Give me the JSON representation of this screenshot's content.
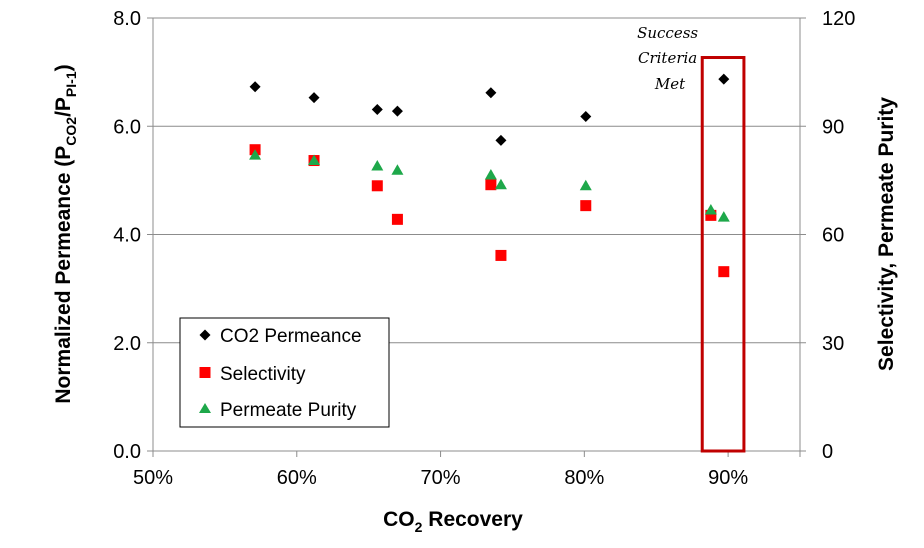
{
  "chart_data": {
    "type": "scatter",
    "title": "",
    "xlabel": {
      "main": "CO",
      "sub": "2",
      "rest": " Recovery"
    },
    "ylabel_left": {
      "p1": "Normalized Permeance (P",
      "s1": "CO2",
      "p2": "/P",
      "s2": "PI-1",
      "p3": ")"
    },
    "ylabel_right": "Selectivity, Permeate Purity",
    "xlim": [
      0.5,
      0.95
    ],
    "ylim_left": [
      0,
      8
    ],
    "ylim_right": [
      0,
      120
    ],
    "x_ticks": [
      {
        "value": 0.5,
        "label": "50%"
      },
      {
        "value": 0.6,
        "label": "60%"
      },
      {
        "value": 0.7,
        "label": "70%"
      },
      {
        "value": 0.8,
        "label": "80%"
      },
      {
        "value": 0.9,
        "label": "90%"
      }
    ],
    "y_left_ticks": [
      {
        "value": 0,
        "label": "0.0"
      },
      {
        "value": 2,
        "label": "2.0"
      },
      {
        "value": 4,
        "label": "4.0"
      },
      {
        "value": 6,
        "label": "6.0"
      },
      {
        "value": 8,
        "label": "8.0"
      }
    ],
    "y_right_ticks": [
      {
        "value": 0,
        "label": "0"
      },
      {
        "value": 30,
        "label": "30"
      },
      {
        "value": 60,
        "label": "60"
      },
      {
        "value": 90,
        "label": "90"
      },
      {
        "value": 120,
        "label": "120"
      }
    ],
    "grid": true,
    "legend_position": "bottom-left",
    "series": [
      {
        "name": "CO2 Permeance",
        "axis": "left",
        "marker": "diamond",
        "color": "#000000",
        "points": [
          {
            "x": 0.571,
            "y": 6.73
          },
          {
            "x": 0.612,
            "y": 6.53
          },
          {
            "x": 0.656,
            "y": 6.31
          },
          {
            "x": 0.67,
            "y": 6.28
          },
          {
            "x": 0.735,
            "y": 6.62
          },
          {
            "x": 0.742,
            "y": 5.74
          },
          {
            "x": 0.801,
            "y": 6.18
          },
          {
            "x": 0.897,
            "y": 6.87
          }
        ]
      },
      {
        "name": "Selectivity",
        "axis": "right",
        "marker": "square",
        "color": "#ff0000",
        "points": [
          {
            "x": 0.571,
            "y": 83.5
          },
          {
            "x": 0.612,
            "y": 80.5
          },
          {
            "x": 0.656,
            "y": 73.5
          },
          {
            "x": 0.67,
            "y": 64.2
          },
          {
            "x": 0.735,
            "y": 73.8
          },
          {
            "x": 0.742,
            "y": 54.2
          },
          {
            "x": 0.801,
            "y": 68.0
          },
          {
            "x": 0.888,
            "y": 65.3
          },
          {
            "x": 0.897,
            "y": 49.7
          }
        ]
      },
      {
        "name": "Permeate Purity",
        "axis": "right",
        "marker": "triangle",
        "color": "#1ea84a",
        "points": [
          {
            "x": 0.571,
            "y": 82.0
          },
          {
            "x": 0.612,
            "y": 80.5
          },
          {
            "x": 0.656,
            "y": 79.0
          },
          {
            "x": 0.67,
            "y": 77.8
          },
          {
            "x": 0.735,
            "y": 76.5
          },
          {
            "x": 0.742,
            "y": 73.8
          },
          {
            "x": 0.801,
            "y": 73.5
          },
          {
            "x": 0.888,
            "y": 66.8
          },
          {
            "x": 0.897,
            "y": 64.8
          }
        ]
      }
    ],
    "annotations": [
      {
        "lines": [
          "Success",
          "Criteria",
          "Met"
        ]
      }
    ],
    "highlight_box": {
      "x_from": 0.882,
      "x_to": 0.911,
      "y_from": 0,
      "y_to": 7.27,
      "color": "#c00000"
    }
  }
}
